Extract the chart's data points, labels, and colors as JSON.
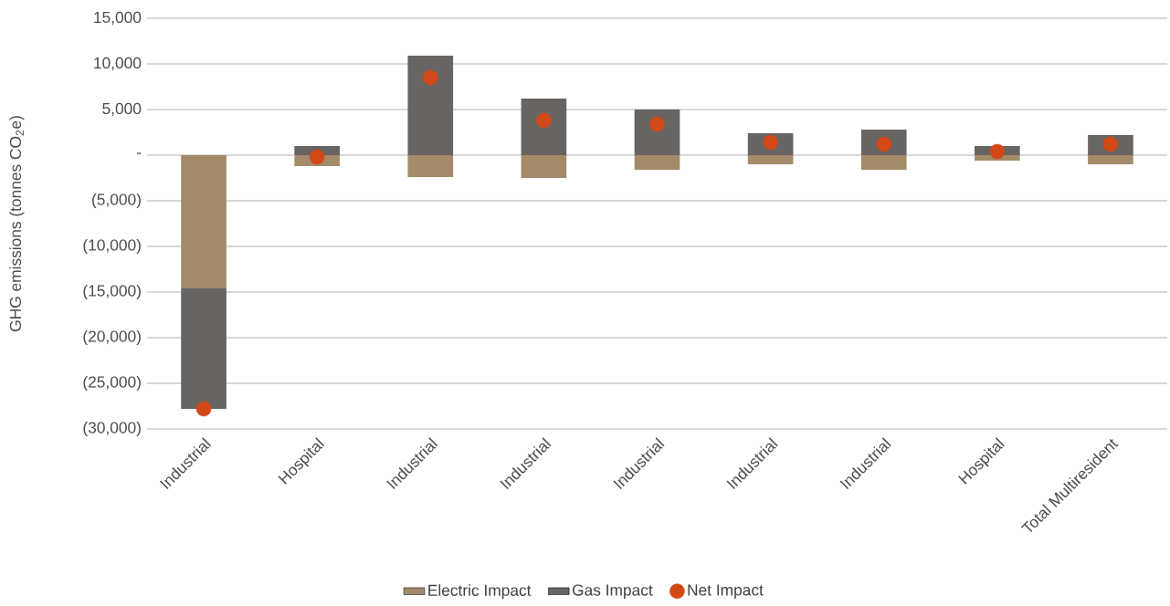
{
  "chart_data": {
    "type": "bar",
    "stacked": true,
    "ylabel": "GHG emissions (tonnes CO$_{2}$e)",
    "categories": [
      "Industrial",
      "Hospital",
      "Industrial",
      "Industrial",
      "Industrial",
      "Industrial",
      "Industrial",
      "Hospital",
      "Total Multiresident"
    ],
    "series": [
      {
        "name": "Electric Impact",
        "type": "bar",
        "color": "#a38b69",
        "values": [
          -14600,
          -1200,
          -2400,
          -2500,
          -1600,
          -1000,
          -1600,
          -600,
          -1000
        ]
      },
      {
        "name": "Gas Impact",
        "type": "bar",
        "color": "#686462",
        "values": [
          -13200,
          1000,
          10900,
          6200,
          5000,
          2400,
          2800,
          1000,
          2200
        ]
      },
      {
        "name": "Net Impact",
        "type": "scatter",
        "marker": "circle",
        "color": "#d34817",
        "values": [
          -27800,
          -200,
          8500,
          3800,
          3400,
          1400,
          1200,
          400,
          1200
        ]
      }
    ],
    "ylim": [
      -30000,
      15000
    ],
    "yticks": [
      {
        "value": -30000,
        "label": "(30,000)"
      },
      {
        "value": -25000,
        "label": "(25,000)"
      },
      {
        "value": -20000,
        "label": "(20,000)"
      },
      {
        "value": -15000,
        "label": "(15,000)"
      },
      {
        "value": -10000,
        "label": "(10,000)"
      },
      {
        "value": -5000,
        "label": "(5,000)"
      },
      {
        "value": 0,
        "label": "-"
      },
      {
        "value": 5000,
        "label": "5,000"
      },
      {
        "value": 10000,
        "label": "10,000"
      },
      {
        "value": 15000,
        "label": "15,000"
      }
    ],
    "grid": "y",
    "legend": "bottom"
  }
}
